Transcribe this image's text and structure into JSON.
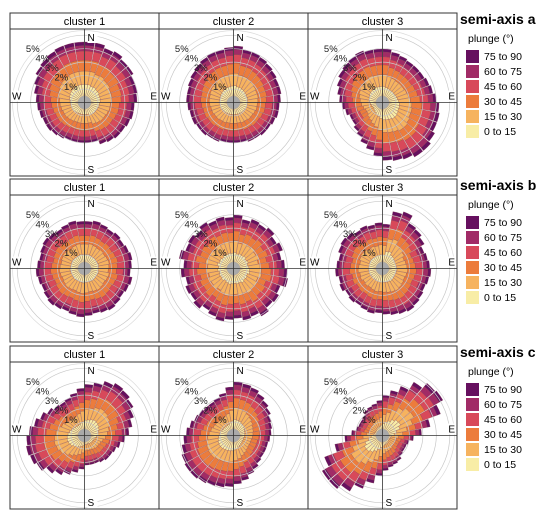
{
  "chart_data": {
    "type": "rose",
    "directions": {
      "n": "N",
      "e": "E",
      "s": "S",
      "w": "W"
    },
    "radial_ticks": [
      "1%",
      "2%",
      "3%",
      "4%",
      "5%"
    ],
    "radial_values": [
      1,
      2,
      3,
      4,
      5
    ],
    "bins_deg": 10,
    "legend": {
      "title": "plunge (°)",
      "classes": [
        {
          "label": "75 to 90",
          "color": "#66105f"
        },
        {
          "label": "60 to 75",
          "color": "#a12b66"
        },
        {
          "label": "45 to 60",
          "color": "#d8495a"
        },
        {
          "label": "30 to 45",
          "color": "#ec7c3c"
        },
        {
          "label": "15 to 30",
          "color": "#f6b35f"
        },
        {
          "label": "0 to 15",
          "color": "#f8eda6"
        }
      ]
    },
    "rows": [
      {
        "name": "semi-axis a",
        "panels": [
          {
            "title": "cluster 1",
            "totals": [
              4.5,
              4.5,
              4.3,
              4.4,
              4.2,
              4.2,
              4.0,
              4.0,
              3.9,
              3.7,
              3.7,
              3.6,
              3.5,
              3.5,
              3.4,
              3.3,
              3.0,
              3.0,
              3.0,
              3.0,
              3.0,
              3.1,
              3.2,
              3.3,
              3.3,
              3.4,
              3.5,
              3.6,
              3.8,
              4.0,
              4.2,
              4.3,
              4.4,
              4.5,
              4.5,
              4.5
            ]
          },
          {
            "title": "cluster 2",
            "totals": [
              4.2,
              4.0,
              4.0,
              3.9,
              3.8,
              3.7,
              3.6,
              3.6,
              3.5,
              3.4,
              3.4,
              3.3,
              3.2,
              3.2,
              3.1,
              3.1,
              3.0,
              3.0,
              3.0,
              3.0,
              3.1,
              3.1,
              3.2,
              3.2,
              3.3,
              3.3,
              3.4,
              3.5,
              3.5,
              3.6,
              3.7,
              3.8,
              3.9,
              4.0,
              4.0,
              4.1
            ]
          },
          {
            "title": "cluster 3",
            "totals": [
              4.0,
              3.8,
              3.7,
              3.6,
              3.6,
              3.6,
              3.7,
              3.8,
              4.0,
              4.2,
              4.3,
              4.3,
              4.5,
              4.7,
              4.7,
              4.5,
              4.4,
              4.3,
              4.0,
              3.6,
              3.3,
              3.0,
              2.8,
              2.6,
              2.6,
              2.8,
              3.0,
              3.2,
              3.4,
              3.6,
              3.8,
              3.9,
              4.0,
              4.1,
              4.0,
              4.0
            ]
          }
        ]
      },
      {
        "name": "semi-axis b",
        "panels": [
          {
            "title": "cluster 1",
            "totals": [
              3.5,
              3.6,
              3.5,
              3.4,
              3.5,
              3.4,
              3.5,
              3.6,
              3.5,
              3.4,
              3.6,
              3.5,
              3.4,
              3.5,
              3.6,
              3.5,
              3.4,
              3.5,
              3.6,
              3.5,
              3.4,
              3.5,
              3.6,
              3.5,
              3.4,
              3.5,
              3.6,
              3.5,
              3.4,
              3.5,
              3.6,
              3.5,
              3.4,
              3.5,
              3.6,
              3.5
            ]
          },
          {
            "title": "cluster 2",
            "totals": [
              4.0,
              3.7,
              3.9,
              3.8,
              4.0,
              3.7,
              3.9,
              3.6,
              3.8,
              4.0,
              4.1,
              3.7,
              3.9,
              3.8,
              4.1,
              3.8,
              3.9,
              3.7,
              3.8,
              4.0,
              3.8,
              3.6,
              3.9,
              3.7,
              3.8,
              3.6,
              3.9,
              3.7,
              4.1,
              3.8,
              3.9,
              3.7,
              4.0,
              3.8,
              3.9,
              3.8
            ]
          },
          {
            "title": "cluster 3",
            "totals": [
              3.3,
              4.3,
              4.5,
              3.9,
              3.8,
              3.6,
              3.3,
              3.4,
              3.5,
              3.6,
              3.5,
              3.4,
              3.5,
              3.6,
              3.7,
              3.6,
              3.5,
              3.4,
              3.3,
              3.4,
              3.3,
              3.2,
              3.3,
              3.2,
              3.4,
              3.3,
              3.5,
              3.4,
              3.3,
              3.5,
              3.6,
              3.5,
              3.3,
              3.4,
              3.3,
              3.4
            ]
          }
        ]
      },
      {
        "name": "semi-axis c",
        "panels": [
          {
            "title": "cluster 1",
            "totals": [
              3.8,
              4.0,
              4.3,
              4.5,
              4.4,
              4.2,
              3.9,
              3.6,
              3.3,
              3.0,
              2.7,
              2.5,
              2.4,
              2.4,
              2.3,
              2.2,
              2.2,
              2.2,
              2.5,
              2.8,
              3.1,
              3.4,
              3.7,
              4.1,
              4.3,
              4.4,
              4.3,
              4.1,
              3.8,
              3.5,
              3.2,
              3.0,
              2.9,
              3.0,
              3.2,
              3.5
            ]
          },
          {
            "title": "cluster 2",
            "totals": [
              4.0,
              3.9,
              3.8,
              3.6,
              3.4,
              3.2,
              3.0,
              2.9,
              2.8,
              2.7,
              2.6,
              2.6,
              2.6,
              2.7,
              2.9,
              3.1,
              3.4,
              3.6,
              3.8,
              3.9,
              4.0,
              4.1,
              4.2,
              4.2,
              4.1,
              3.9,
              3.7,
              3.5,
              3.3,
              3.1,
              3.0,
              2.9,
              2.9,
              3.0,
              3.2,
              3.6
            ]
          },
          {
            "title": "cluster 3",
            "totals": [
              3.0,
              3.4,
              3.9,
              4.6,
              5.1,
              5.2,
              4.6,
              3.6,
              2.9,
              2.3,
              2.0,
              1.9,
              1.9,
              2.0,
              2.2,
              2.3,
              2.4,
              2.6,
              3.0,
              3.6,
              4.2,
              4.8,
              5.2,
              5.2,
              4.6,
              3.6,
              2.8,
              2.3,
              2.0,
              1.9,
              1.9,
              2.0,
              2.2,
              2.3,
              2.4,
              2.6
            ]
          }
        ]
      }
    ]
  }
}
